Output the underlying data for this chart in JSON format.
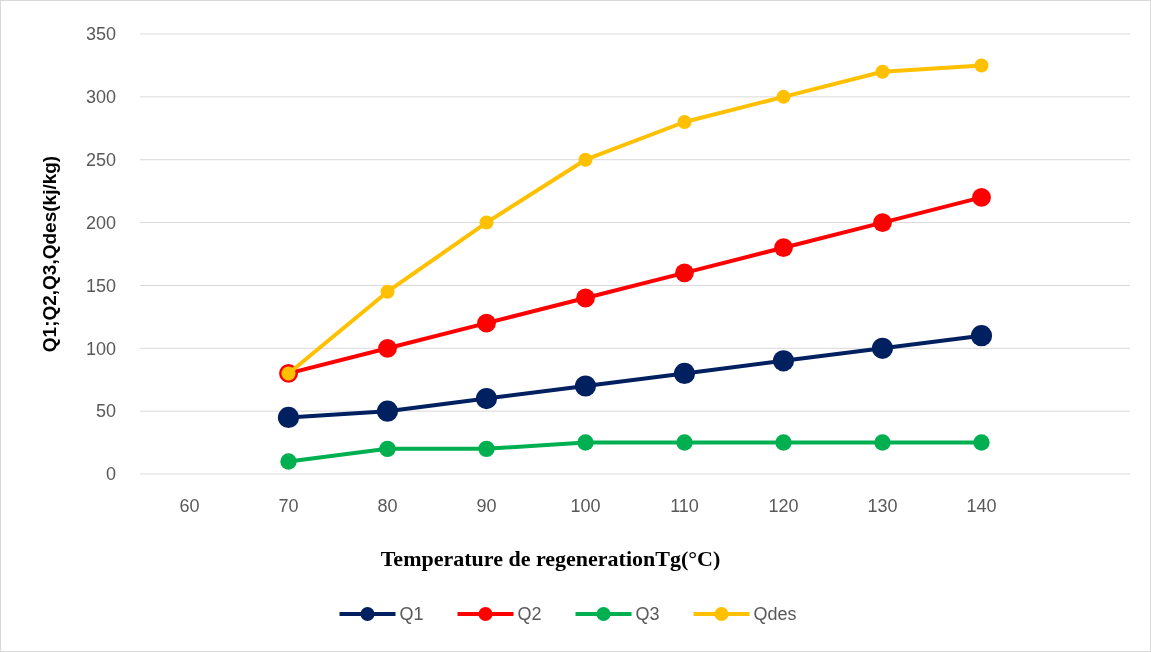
{
  "chart_data": {
    "type": "line",
    "xlabel": "Temperature de regenerationTg(°C)",
    "ylabel": "Q1;Q2,Q3,Qdes(kj/kg)",
    "categories": [
      "60",
      "70",
      "80",
      "90",
      "100",
      "110",
      "120",
      "130",
      "140",
      null
    ],
    "series": [
      {
        "name": "Q1",
        "color": "#002060",
        "values": [
          null,
          45,
          50,
          60,
          70,
          80,
          90,
          100,
          110,
          null
        ]
      },
      {
        "name": "Q2",
        "color": "#ff0000",
        "values": [
          null,
          80,
          100,
          120,
          140,
          160,
          180,
          200,
          220,
          null
        ]
      },
      {
        "name": "Q3",
        "color": "#00b050",
        "values": [
          null,
          10,
          20,
          20,
          25,
          25,
          25,
          25,
          25,
          null
        ]
      },
      {
        "name": "Qdes",
        "color": "#ffc000",
        "values": [
          null,
          80,
          145,
          200,
          250,
          280,
          300,
          320,
          325,
          null
        ]
      }
    ],
    "ylim": [
      0,
      350
    ],
    "yticks": [
      0,
      50,
      100,
      150,
      200,
      250,
      300,
      350
    ],
    "grid": "y",
    "legend": "bottom",
    "marker": "circle",
    "line_style": "solid"
  }
}
